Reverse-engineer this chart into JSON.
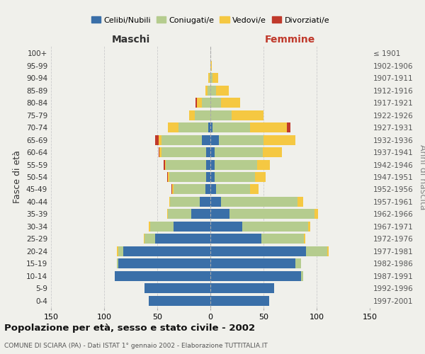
{
  "age_groups": [
    "0-4",
    "5-9",
    "10-14",
    "15-19",
    "20-24",
    "25-29",
    "30-34",
    "35-39",
    "40-44",
    "45-49",
    "50-54",
    "55-59",
    "60-64",
    "65-69",
    "70-74",
    "75-79",
    "80-84",
    "85-89",
    "90-94",
    "95-99",
    "100+"
  ],
  "birth_years": [
    "1997-2001",
    "1992-1996",
    "1987-1991",
    "1982-1986",
    "1977-1981",
    "1972-1976",
    "1967-1971",
    "1962-1966",
    "1957-1961",
    "1952-1956",
    "1947-1951",
    "1942-1946",
    "1937-1941",
    "1932-1936",
    "1927-1931",
    "1922-1926",
    "1917-1921",
    "1912-1916",
    "1907-1911",
    "1902-1906",
    "≤ 1901"
  ],
  "maschi": {
    "celibi": [
      58,
      62,
      90,
      87,
      82,
      52,
      35,
      18,
      10,
      5,
      4,
      4,
      4,
      8,
      2,
      0,
      0,
      0,
      0,
      0,
      0
    ],
    "coniugati": [
      0,
      0,
      0,
      1,
      5,
      10,
      22,
      22,
      28,
      30,
      35,
      38,
      42,
      38,
      28,
      15,
      8,
      3,
      1,
      0,
      0
    ],
    "vedovi": [
      0,
      0,
      0,
      0,
      1,
      1,
      1,
      1,
      1,
      1,
      1,
      1,
      2,
      3,
      10,
      5,
      5,
      2,
      1,
      0,
      0
    ],
    "divorziati": [
      0,
      0,
      0,
      0,
      0,
      0,
      0,
      0,
      0,
      1,
      1,
      1,
      1,
      3,
      0,
      0,
      1,
      0,
      0,
      0,
      0
    ]
  },
  "femmine": {
    "nubili": [
      55,
      60,
      85,
      80,
      90,
      48,
      30,
      18,
      10,
      5,
      4,
      4,
      4,
      8,
      2,
      0,
      0,
      0,
      0,
      0,
      0
    ],
    "coniugate": [
      0,
      0,
      2,
      5,
      20,
      40,
      62,
      80,
      72,
      32,
      38,
      40,
      45,
      42,
      35,
      20,
      10,
      5,
      2,
      0,
      0
    ],
    "vedove": [
      0,
      0,
      0,
      0,
      1,
      1,
      2,
      3,
      5,
      8,
      10,
      12,
      18,
      30,
      35,
      30,
      18,
      12,
      5,
      1,
      0
    ],
    "divorziate": [
      0,
      0,
      0,
      0,
      0,
      0,
      0,
      0,
      0,
      0,
      0,
      0,
      0,
      0,
      3,
      0,
      0,
      0,
      0,
      0,
      0
    ]
  },
  "colors": {
    "celibi": "#3a6fa8",
    "coniugati": "#b5cc8e",
    "vedovi": "#f5c842",
    "divorziati": "#c0392b"
  },
  "xlim": 150,
  "title": "Popolazione per età, sesso e stato civile - 2002",
  "subtitle": "COMUNE DI SCIARA (PA) - Dati ISTAT 1° gennaio 2002 - Elaborazione TUTTITALIA.IT",
  "ylabel_left": "Fasce di età",
  "ylabel_right": "Anni di nascita",
  "xlabel_maschi": "Maschi",
  "xlabel_femmine": "Femmine",
  "bg_color": "#f0f0eb",
  "grid_color": "#cccccc"
}
